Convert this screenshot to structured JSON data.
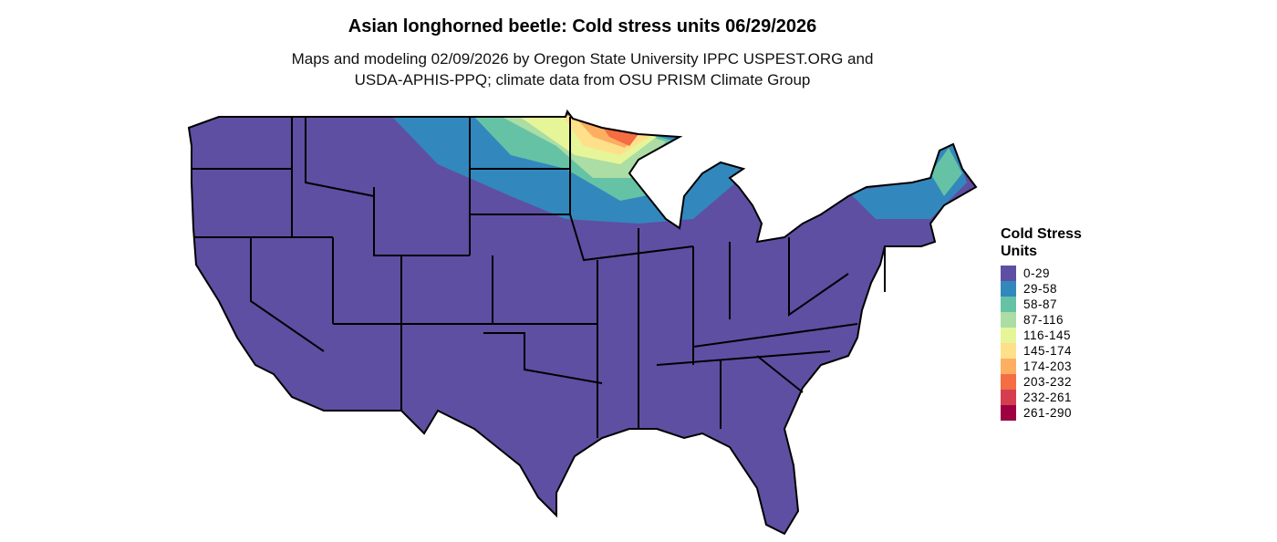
{
  "title": "Asian longhorned beetle: Cold stress units 06/29/2026",
  "subtitle": [
    "Maps and modeling 02/09/2026 by Oregon State University IPPC USPEST.ORG and",
    "USDA-APHIS-PPQ; climate data from OSU PRISM Climate Group"
  ],
  "legend": {
    "title_line1": "Cold Stress",
    "title_line2": "Units",
    "items": [
      {
        "label": "0-29",
        "color": "#5E4FA2"
      },
      {
        "label": "29-58",
        "color": "#3288BD"
      },
      {
        "label": "58-87",
        "color": "#66C2A5"
      },
      {
        "label": "87-116",
        "color": "#ABDDA4"
      },
      {
        "label": "116-145",
        "color": "#E6F598"
      },
      {
        "label": "145-174",
        "color": "#FEE08B"
      },
      {
        "label": "174-203",
        "color": "#FDAE61"
      },
      {
        "label": "203-232",
        "color": "#F46D43"
      },
      {
        "label": "232-261",
        "color": "#D53E4F"
      },
      {
        "label": "261-290",
        "color": "#9E0142"
      }
    ]
  }
}
